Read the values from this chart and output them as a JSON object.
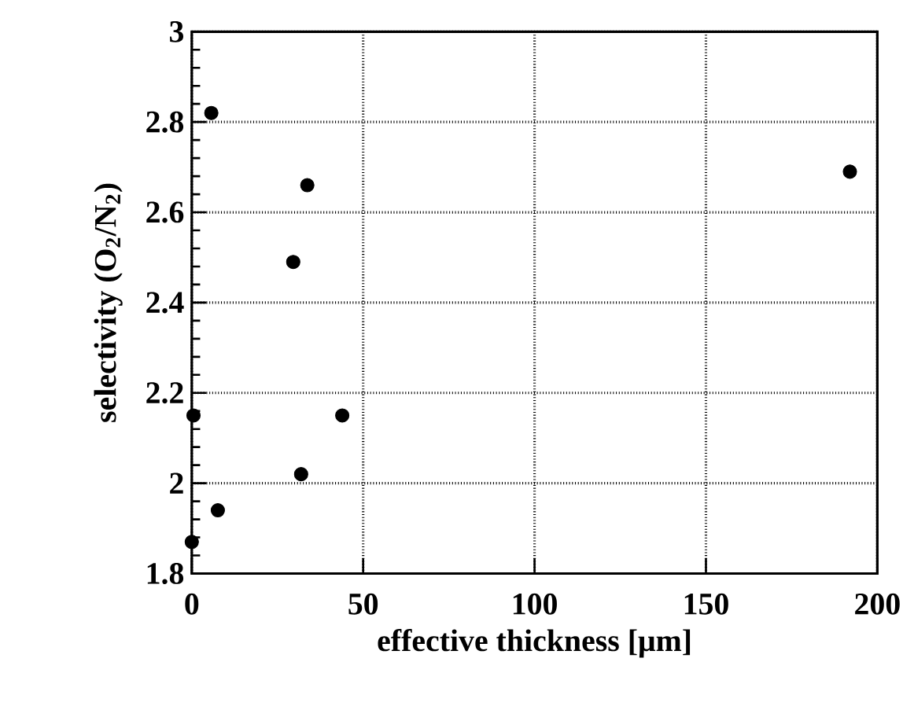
{
  "chart_data": {
    "type": "scatter",
    "xlabel": "effective thickness [μm]",
    "ylabel": "selectivity (O$_{2}$/N$_{2}$)",
    "x": [
      0,
      0.5,
      5.7,
      7.6,
      29.6,
      31.9,
      33.7,
      43.9,
      192
    ],
    "series": [
      {
        "color": "#000000",
        "values": [
          1.87,
          2.15,
          2.82,
          1.94,
          2.49,
          2.02,
          2.66,
          2.15,
          2.69
        ]
      }
    ],
    "xlim": [
      0,
      200
    ],
    "ylim": [
      1.8,
      3
    ],
    "xticks": [
      0,
      50,
      100,
      150,
      200
    ],
    "yticks": [
      1.8,
      2,
      2.2,
      2.4,
      2.6,
      2.8,
      3
    ],
    "grid": true,
    "marker": "circle"
  }
}
